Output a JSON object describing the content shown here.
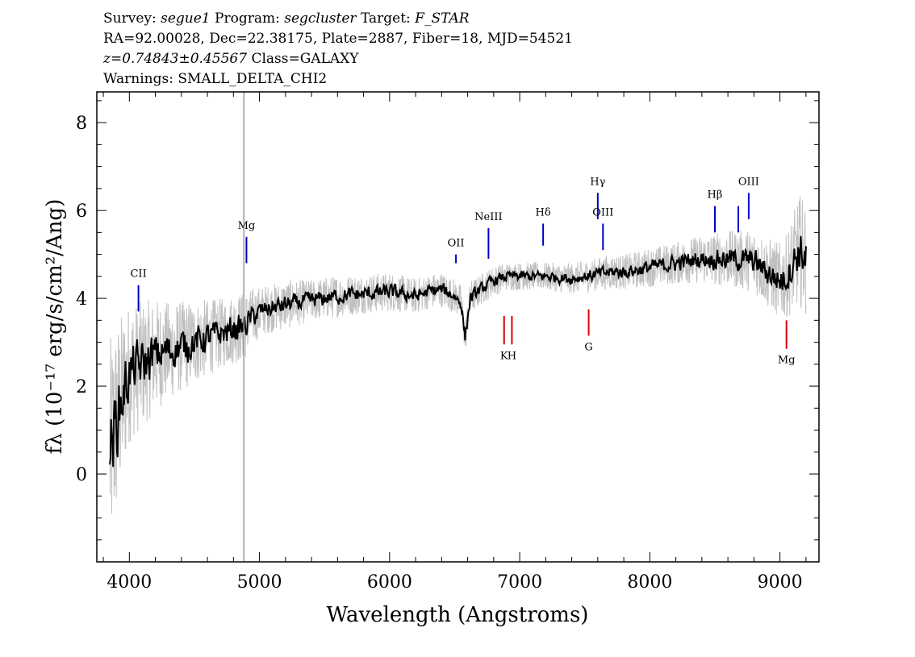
{
  "header": {
    "line1": {
      "survey_label": "Survey: ",
      "survey": "segue1",
      "program_label": " Program: ",
      "program": "segcluster",
      "target_label": " Target: ",
      "target": "F_STAR"
    },
    "line2": "RA=92.00028, Dec=22.38175, Plate=2887, Fiber=18, MJD=54521",
    "line3": {
      "redshift": "z=0.74843±0.45567",
      "class": " Class=GALAXY"
    },
    "line4": "Warnings: SMALL_DELTA_CHI2"
  },
  "chart_data": {
    "type": "line",
    "xlabel": "Wavelength (Angstroms)",
    "ylabel": "fλ (10⁻¹⁷ erg/s/cm²/Ang)",
    "xlim": [
      3750,
      9300
    ],
    "ylim": [
      -2.0,
      8.7
    ],
    "xticks": [
      4000,
      5000,
      6000,
      7000,
      8000,
      9000
    ],
    "yticks": [
      0,
      2,
      4,
      6,
      8
    ],
    "grid": false,
    "colors": {
      "spectrum": "#000000",
      "noise": "#c0c0c0",
      "emission": "#0000cc",
      "absorption": "#dd0000",
      "marker": "#999999",
      "axis": "#000000"
    },
    "series": [
      {
        "role": "smoothed spectrum",
        "x": [
          3850,
          3900,
          3950,
          4000,
          4100,
          4200,
          4300,
          4400,
          4500,
          4600,
          4700,
          4800,
          4880,
          4950,
          5050,
          5200,
          5400,
          5600,
          5800,
          6000,
          6200,
          6300,
          6400,
          6500,
          6550,
          6580,
          6620,
          6700,
          6800,
          6900,
          7000,
          7200,
          7400,
          7600,
          7700,
          7800,
          8000,
          8200,
          8400,
          8600,
          8800,
          8900,
          9000,
          9050,
          9100,
          9150,
          9200
        ],
        "y": [
          0.5,
          1.2,
          1.8,
          2.3,
          2.5,
          2.7,
          2.8,
          2.9,
          3.0,
          3.1,
          3.2,
          3.3,
          3.35,
          3.6,
          3.75,
          3.85,
          3.95,
          4.05,
          4.1,
          4.15,
          4.05,
          4.15,
          4.2,
          4.05,
          3.9,
          3.1,
          4.0,
          4.2,
          4.4,
          4.5,
          4.5,
          4.5,
          4.45,
          4.55,
          4.6,
          4.6,
          4.7,
          4.8,
          4.9,
          4.9,
          4.85,
          4.6,
          4.4,
          4.5,
          4.8,
          5.1,
          4.9
        ],
        "noise_amplitude": [
          1.6,
          1.4,
          1.2,
          1.0,
          0.9,
          0.8,
          0.7,
          0.65,
          0.6,
          0.55,
          0.5,
          0.5,
          0.5,
          0.4,
          0.35,
          0.35,
          0.3,
          0.3,
          0.28,
          0.28,
          0.25,
          0.25,
          0.25,
          0.25,
          0.25,
          0.25,
          0.25,
          0.22,
          0.22,
          0.2,
          0.2,
          0.2,
          0.22,
          0.24,
          0.25,
          0.25,
          0.28,
          0.3,
          0.35,
          0.4,
          0.45,
          0.5,
          0.55,
          0.6,
          0.7,
          0.8,
          0.8
        ]
      }
    ],
    "vertical_marker": {
      "x": 4880
    },
    "emission_lines": [
      {
        "label": "CII",
        "x": 4070,
        "y_top": 4.3,
        "y_bottom": 3.7
      },
      {
        "label": "Mg",
        "x": 4900,
        "y_top": 5.4,
        "y_bottom": 4.8
      },
      {
        "label": "OII",
        "x": 6510,
        "y_top": 5.0,
        "y_bottom": 4.8
      },
      {
        "label": "NeIII",
        "x": 6760,
        "y_top": 5.6,
        "y_bottom": 4.9
      },
      {
        "label": "Hδ",
        "x": 7180,
        "y_top": 5.7,
        "y_bottom": 5.2
      },
      {
        "label": "Hγ",
        "x": 7600,
        "y_top": 6.4,
        "y_bottom": 5.8
      },
      {
        "label": "OIII",
        "x": 7640,
        "y_top": 5.7,
        "y_bottom": 5.1
      },
      {
        "label": "Hβ",
        "x": 8500,
        "y_top": 6.1,
        "y_bottom": 5.5
      },
      {
        "label": "OIII",
        "x": 8760,
        "y_top": 6.4,
        "y_bottom": 5.8
      },
      {
        "label": "",
        "x": 8680,
        "y_top": 6.1,
        "y_bottom": 5.5
      }
    ],
    "absorption_lines": [
      {
        "label": "K",
        "x": 6880,
        "y_top": 3.6,
        "y_bottom": 2.95
      },
      {
        "label": "H",
        "x": 6940,
        "y_top": 3.6,
        "y_bottom": 2.95
      },
      {
        "label": "G",
        "x": 7530,
        "y_top": 3.75,
        "y_bottom": 3.15
      },
      {
        "label": "Mg",
        "x": 9050,
        "y_top": 3.5,
        "y_bottom": 2.85
      }
    ]
  }
}
